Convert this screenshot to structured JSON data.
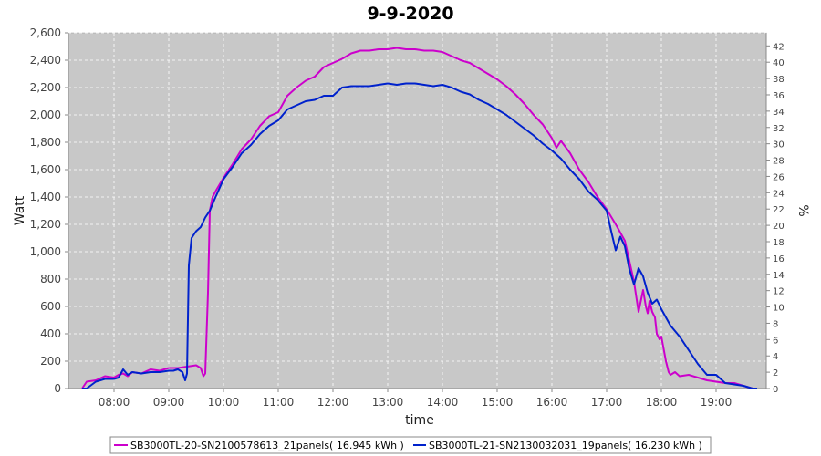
{
  "chart_data": {
    "type": "line",
    "title": "9-9-2020",
    "xlabel": "time",
    "ylabel": "Watt",
    "y2label": "%",
    "xlim": [
      "07:10",
      "19:55"
    ],
    "ylim": [
      0,
      2600
    ],
    "y2lim": [
      0,
      43.6
    ],
    "x_ticks": [
      "08:00",
      "09:00",
      "10:00",
      "11:00",
      "12:00",
      "13:00",
      "14:00",
      "15:00",
      "16:00",
      "17:00",
      "18:00",
      "19:00"
    ],
    "y_ticks": [
      "0",
      "200",
      "400",
      "600",
      "800",
      "1,000",
      "1,200",
      "1,400",
      "1,600",
      "1,800",
      "2,000",
      "2,200",
      "2,400",
      "2,600"
    ],
    "y2_ticks": [
      "0",
      "2",
      "4",
      "6",
      "8",
      "10",
      "12",
      "14",
      "16",
      "18",
      "20",
      "22",
      "24",
      "26",
      "28",
      "30",
      "32",
      "34",
      "36",
      "38",
      "40",
      "42"
    ],
    "grid": true,
    "legend_position": "bottom",
    "background": "#c8c8c8",
    "series": [
      {
        "name": "SB3000TL-20-SN2100578613_21panels( 16.945 kWh )",
        "color": "#cc00cc",
        "x": [
          "07:25",
          "07:30",
          "07:40",
          "07:50",
          "08:00",
          "08:05",
          "08:10",
          "08:15",
          "08:20",
          "08:30",
          "08:40",
          "08:50",
          "09:00",
          "09:10",
          "09:20",
          "09:30",
          "09:35",
          "09:38",
          "09:40",
          "09:43",
          "09:45",
          "09:48",
          "09:52",
          "10:00",
          "10:10",
          "10:20",
          "10:30",
          "10:40",
          "10:50",
          "11:00",
          "11:10",
          "11:20",
          "11:30",
          "11:40",
          "11:50",
          "12:00",
          "12:10",
          "12:20",
          "12:30",
          "12:40",
          "12:50",
          "13:00",
          "13:10",
          "13:20",
          "13:30",
          "13:40",
          "13:50",
          "14:00",
          "14:10",
          "14:20",
          "14:30",
          "14:40",
          "14:50",
          "15:00",
          "15:10",
          "15:20",
          "15:30",
          "15:40",
          "15:50",
          "16:00",
          "16:05",
          "16:10",
          "16:20",
          "16:30",
          "16:40",
          "16:50",
          "17:00",
          "17:10",
          "17:20",
          "17:25",
          "17:30",
          "17:35",
          "17:40",
          "17:43",
          "17:45",
          "17:47",
          "17:50",
          "17:53",
          "17:55",
          "17:58",
          "18:00",
          "18:05",
          "18:08",
          "18:10",
          "18:15",
          "18:20",
          "18:30",
          "18:40",
          "18:50",
          "19:00",
          "19:10",
          "19:20",
          "19:30",
          "19:40",
          "19:45"
        ],
        "values": [
          0,
          50,
          60,
          90,
          80,
          100,
          110,
          90,
          120,
          110,
          140,
          130,
          150,
          150,
          160,
          170,
          150,
          90,
          110,
          700,
          1300,
          1400,
          1450,
          1540,
          1640,
          1750,
          1820,
          1920,
          1990,
          2020,
          2140,
          2200,
          2250,
          2280,
          2350,
          2380,
          2410,
          2450,
          2470,
          2470,
          2480,
          2480,
          2490,
          2480,
          2480,
          2470,
          2470,
          2460,
          2430,
          2400,
          2380,
          2340,
          2300,
          2260,
          2210,
          2150,
          2080,
          2000,
          1930,
          1830,
          1760,
          1810,
          1720,
          1600,
          1510,
          1400,
          1310,
          1200,
          1080,
          930,
          780,
          560,
          720,
          600,
          550,
          640,
          560,
          520,
          400,
          360,
          380,
          200,
          120,
          100,
          120,
          90,
          100,
          80,
          60,
          50,
          40,
          40,
          20,
          0,
          0
        ]
      },
      {
        "name": "SB3000TL-21-SN2130032031_19panels( 16.230 kWh )",
        "color": "#0022cc",
        "x": [
          "07:25",
          "07:30",
          "07:40",
          "07:50",
          "08:00",
          "08:05",
          "08:10",
          "08:15",
          "08:20",
          "08:30",
          "08:40",
          "08:50",
          "09:00",
          "09:05",
          "09:10",
          "09:15",
          "09:18",
          "09:20",
          "09:22",
          "09:25",
          "09:30",
          "09:35",
          "09:40",
          "09:45",
          "09:50",
          "10:00",
          "10:10",
          "10:20",
          "10:30",
          "10:40",
          "10:50",
          "11:00",
          "11:10",
          "11:20",
          "11:30",
          "11:40",
          "11:50",
          "12:00",
          "12:10",
          "12:20",
          "12:30",
          "12:40",
          "12:50",
          "13:00",
          "13:10",
          "13:20",
          "13:30",
          "13:40",
          "13:50",
          "14:00",
          "14:10",
          "14:20",
          "14:30",
          "14:40",
          "14:50",
          "15:00",
          "15:10",
          "15:20",
          "15:30",
          "15:40",
          "15:50",
          "16:00",
          "16:10",
          "16:20",
          "16:30",
          "16:40",
          "16:50",
          "17:00",
          "17:05",
          "17:10",
          "17:15",
          "17:20",
          "17:25",
          "17:30",
          "17:35",
          "17:40",
          "17:45",
          "17:50",
          "17:55",
          "18:00",
          "18:05",
          "18:10",
          "18:20",
          "18:30",
          "18:40",
          "18:50",
          "19:00",
          "19:10",
          "19:20",
          "19:30",
          "19:40",
          "19:45"
        ],
        "values": [
          0,
          0,
          50,
          70,
          70,
          80,
          140,
          100,
          120,
          110,
          120,
          120,
          130,
          130,
          140,
          120,
          60,
          110,
          900,
          1100,
          1150,
          1180,
          1250,
          1300,
          1380,
          1530,
          1620,
          1720,
          1780,
          1860,
          1920,
          1960,
          2040,
          2070,
          2100,
          2110,
          2140,
          2140,
          2200,
          2210,
          2210,
          2210,
          2220,
          2230,
          2220,
          2230,
          2230,
          2220,
          2210,
          2220,
          2200,
          2170,
          2150,
          2110,
          2080,
          2040,
          2000,
          1950,
          1900,
          1850,
          1790,
          1740,
          1680,
          1600,
          1530,
          1440,
          1380,
          1300,
          1150,
          1010,
          1110,
          1040,
          870,
          760,
          880,
          820,
          700,
          620,
          650,
          580,
          520,
          460,
          380,
          280,
          180,
          100,
          100,
          40,
          30,
          20,
          0,
          0
        ]
      }
    ]
  }
}
